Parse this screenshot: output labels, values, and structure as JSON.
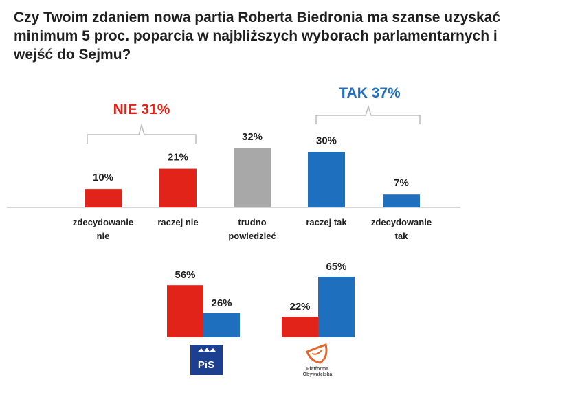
{
  "title": "Czy Twoim zdaniem nowa partia Roberta Biedronia ma szanse uzyskać minimum 5 proc. poparcia w najbliższych wyborach parlamentarnych i wejść do Sejmu?",
  "colors": {
    "red": "#e2231a",
    "blue": "#1f6fbf",
    "gray": "#a8a8a8",
    "nie_text": "#e2231a",
    "tak_text": "#1f6fbf"
  },
  "groups": {
    "nie_label": "NIE 31%",
    "tak_label": "TAK 37%"
  },
  "chart_data": [
    {
      "type": "bar",
      "categories": [
        [
          "zdecydowanie",
          "nie"
        ],
        [
          "raczej nie"
        ],
        [
          "trudno",
          "powiedzieć"
        ],
        [
          "raczej tak"
        ],
        [
          "zdecydowanie",
          "tak"
        ]
      ],
      "values": [
        10,
        21,
        32,
        30,
        7
      ],
      "value_labels": [
        "10%",
        "21%",
        "32%",
        "30%",
        "7%"
      ],
      "bar_colors": [
        "red",
        "red",
        "gray",
        "blue",
        "blue"
      ],
      "ylim": [
        0,
        35
      ]
    },
    {
      "type": "bar",
      "categories": [
        "PiS",
        "Platforma Obywatelska"
      ],
      "series": [
        {
          "color": "red",
          "values": [
            56,
            22
          ],
          "value_labels": [
            "56%",
            "22%"
          ]
        },
        {
          "color": "blue",
          "values": [
            26,
            65
          ],
          "value_labels": [
            "26%",
            "65%"
          ]
        }
      ],
      "ylim": [
        0,
        70
      ]
    }
  ],
  "logos": {
    "pis_text": "PiS",
    "po_line1": "Platforma",
    "po_line2": "Obywatelska"
  }
}
